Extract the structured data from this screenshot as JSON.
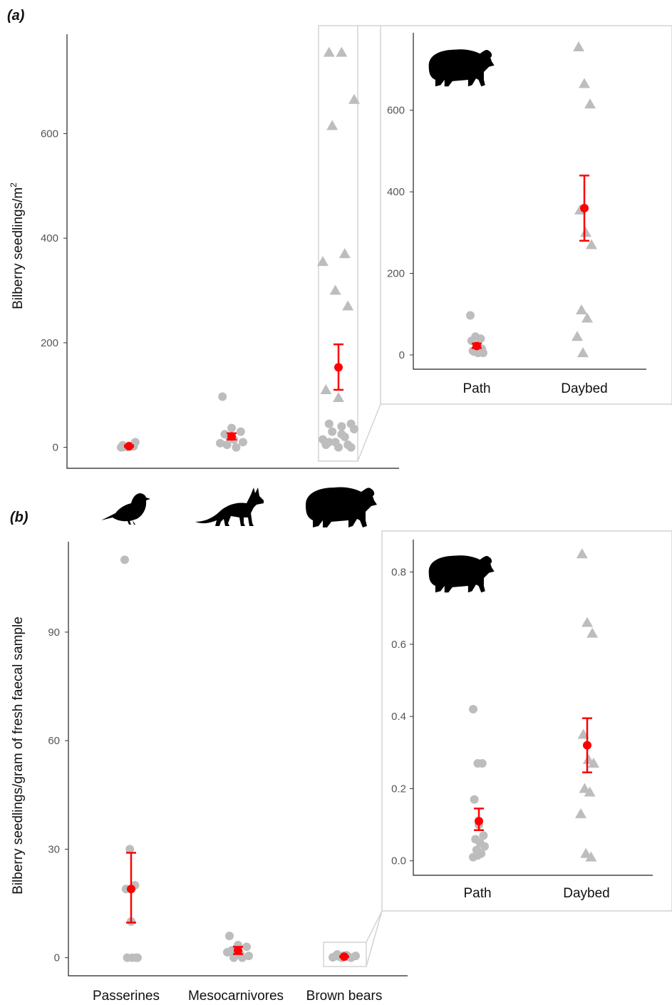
{
  "colors": {
    "points": "#bdbdbd",
    "mean": "#ff0000",
    "silhouette": "#000000",
    "zoom_box": "#d3d3d3"
  },
  "icons": {
    "passerine": "bird-silhouette-icon",
    "mesocarnivore": "fox-silhouette-icon",
    "bear": "bear-silhouette-icon"
  },
  "chart_data": [
    {
      "id": "a-main",
      "panel_label": "(a)",
      "type": "scatter",
      "ylabel": "Bilberry seedlings/m",
      "ylabel_sup": "2",
      "xlabel": "",
      "ylim": [
        -40,
        790
      ],
      "yticks": [
        "0",
        "200",
        "400",
        "600"
      ],
      "categories": [
        "Passerines",
        "Mesocarnivores",
        "Brown bears"
      ],
      "grid": false,
      "series": [
        {
          "category": "Passerines",
          "mean": 2,
          "ci": [
            1,
            4
          ],
          "points": [
            0,
            1,
            2,
            4,
            3,
            10,
            1,
            2
          ]
        },
        {
          "category": "Mesocarnivores",
          "mean": 21,
          "ci": [
            15,
            27
          ],
          "points": [
            97,
            37,
            30,
            25,
            15,
            10,
            5,
            0,
            8,
            20
          ]
        },
        {
          "category": "Brown bears",
          "mean": 153,
          "ci": [
            110,
            197
          ],
          "points": [
            755,
            755,
            665,
            615,
            370,
            355,
            300,
            270,
            110,
            95,
            45,
            45,
            40,
            35,
            30,
            20,
            15,
            10,
            5,
            5,
            0,
            0,
            10,
            25
          ]
        }
      ]
    },
    {
      "id": "a-inset",
      "type": "scatter",
      "ylim": [
        -35,
        790
      ],
      "yticks": [
        "0",
        "200",
        "400",
        "600"
      ],
      "categories": [
        "Path",
        "Daybed"
      ],
      "series": [
        {
          "category": "Path",
          "marker": "circle",
          "mean": 22,
          "ci": [
            17,
            28
          ],
          "points": [
            97,
            45,
            40,
            35,
            20,
            15,
            10,
            5,
            5,
            8
          ]
        },
        {
          "category": "Daybed",
          "marker": "triangle",
          "mean": 360,
          "ci": [
            280,
            440
          ],
          "points": [
            755,
            665,
            615,
            355,
            300,
            270,
            110,
            90,
            45,
            5
          ]
        }
      ]
    },
    {
      "id": "b-main",
      "panel_label": "(b)",
      "type": "scatter",
      "ylabel": "Bilberry seedlings/gram of fresh faecal sample",
      "xlabel": "",
      "ylim": [
        -5,
        115
      ],
      "yticks": [
        "0",
        "30",
        "60",
        "90"
      ],
      "categories": [
        "Passerines",
        "Mesocarnivores",
        "Brown bears"
      ],
      "grid": false,
      "series": [
        {
          "category": "Passerines",
          "mean": 19,
          "ci": [
            9.7,
            29
          ],
          "points": [
            110,
            30,
            20,
            19,
            10,
            0,
            0,
            0,
            0
          ]
        },
        {
          "category": "Mesocarnivores",
          "mean": 2,
          "ci": [
            1,
            3
          ],
          "points": [
            6,
            3.5,
            3,
            2,
            1,
            0.5,
            0,
            0,
            1.5,
            2.5
          ]
        },
        {
          "category": "Brown bears",
          "mean": 0.3,
          "ci": [
            0.2,
            0.4
          ],
          "points": [
            0.9,
            0.7,
            0.5,
            0.3,
            0.2,
            0.1,
            0,
            0,
            0.4,
            0.6
          ]
        }
      ]
    },
    {
      "id": "b-inset",
      "type": "scatter",
      "ylim": [
        -0.04,
        0.89
      ],
      "yticks": [
        "0.0",
        "0.2",
        "0.4",
        "0.6",
        "0.8"
      ],
      "categories": [
        "Path",
        "Daybed"
      ],
      "series": [
        {
          "category": "Path",
          "marker": "circle",
          "mean": 0.11,
          "ci": [
            0.085,
            0.145
          ],
          "points": [
            0.42,
            0.27,
            0.27,
            0.17,
            0.1,
            0.07,
            0.06,
            0.05,
            0.04,
            0.03,
            0.02,
            0.01,
            0.015
          ]
        },
        {
          "category": "Daybed",
          "marker": "triangle",
          "mean": 0.32,
          "ci": [
            0.245,
            0.395
          ],
          "points": [
            0.85,
            0.66,
            0.63,
            0.35,
            0.28,
            0.27,
            0.2,
            0.19,
            0.13,
            0.02,
            0.01
          ]
        }
      ]
    }
  ]
}
